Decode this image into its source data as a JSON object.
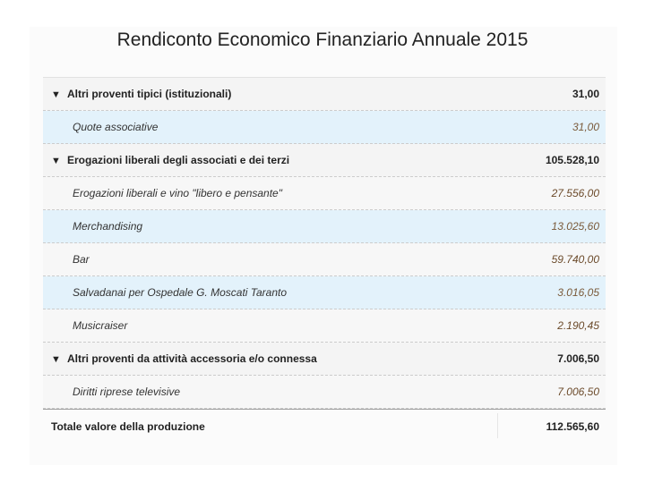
{
  "title": "Rendiconto Economico Finanziario Annuale 2015",
  "groups": [
    {
      "label": "Altri proventi tipici (istituzionali)",
      "amount": "31,00",
      "items": [
        {
          "label": "Quote associative",
          "amount": "31,00"
        }
      ]
    },
    {
      "label": "Erogazioni liberali degli associati e dei terzi",
      "amount": "105.528,10",
      "items": [
        {
          "label": "Erogazioni liberali e vino \"libero e pensante\"",
          "amount": "27.556,00"
        },
        {
          "label": "Merchandising",
          "amount": "13.025,60"
        },
        {
          "label": "Bar",
          "amount": "59.740,00"
        },
        {
          "label": "Salvadanai per Ospedale G. Moscati Taranto",
          "amount": "3.016,05"
        },
        {
          "label": "Musicraiser",
          "amount": "2.190,45"
        }
      ]
    },
    {
      "label": "Altri proventi da attività accessoria e/o connessa",
      "amount": "7.006,50",
      "items": [
        {
          "label": "Diritti riprese televisive",
          "amount": "7.006,50"
        }
      ]
    }
  ],
  "toggle_glyph": "▼",
  "total": {
    "label": "Totale valore della produzione",
    "amount": "112.565,60"
  }
}
